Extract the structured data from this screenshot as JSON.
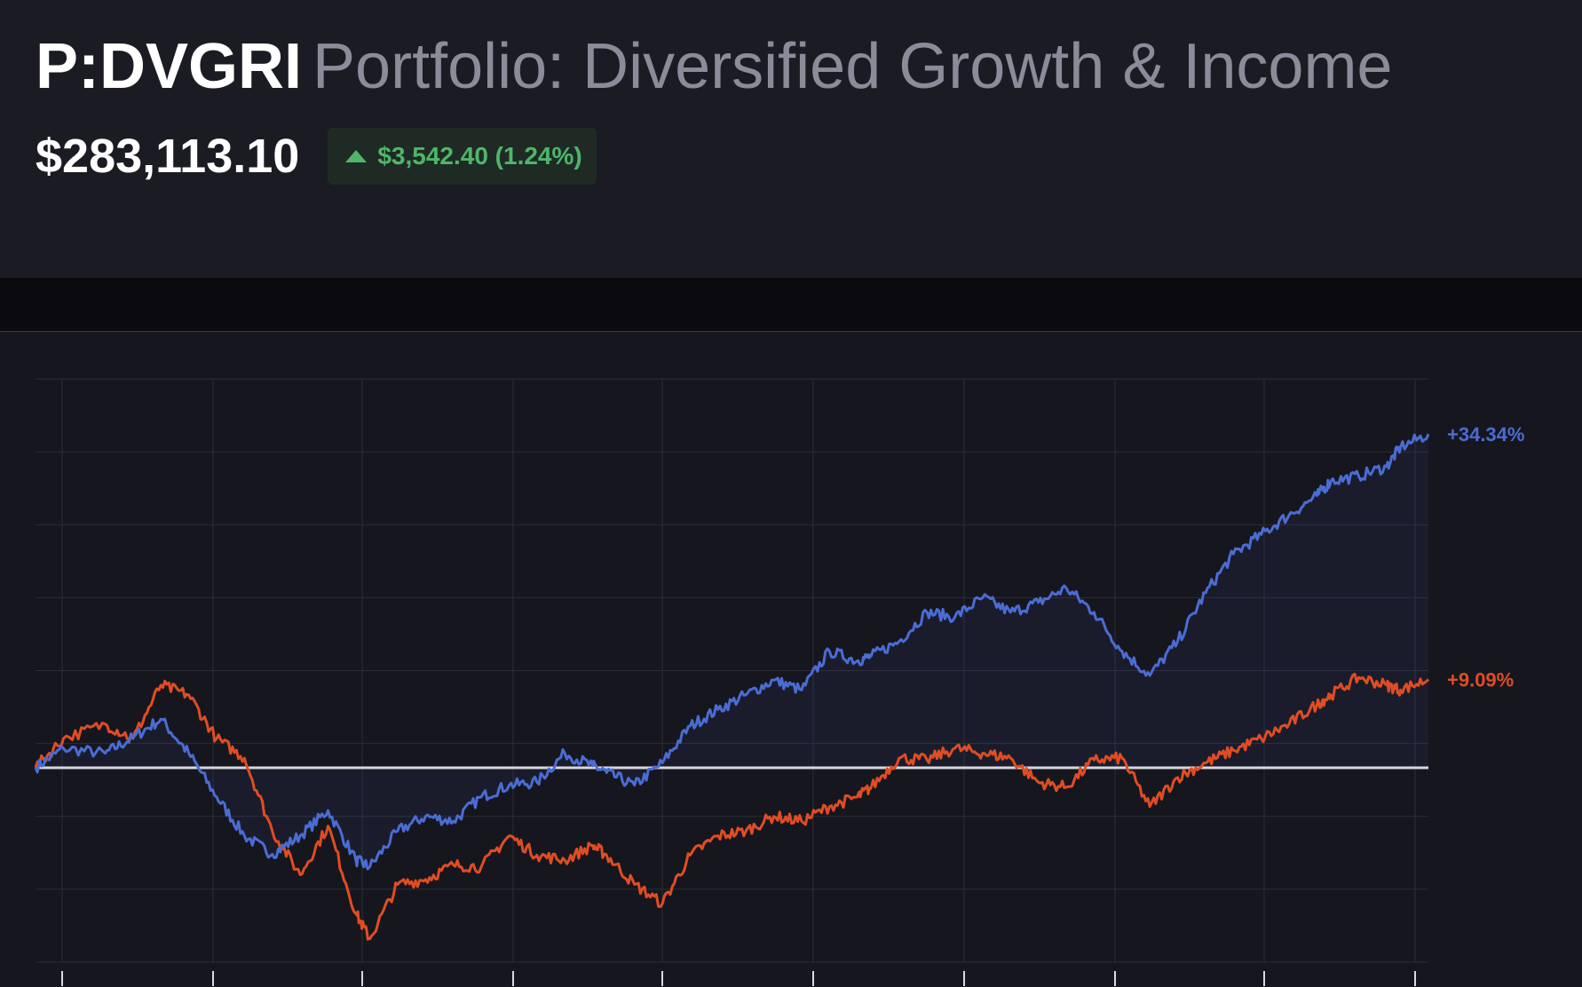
{
  "header": {
    "ticker": "P:DVGRI",
    "name": "Portfolio: Diversified Growth & Income",
    "value": "$283,113.10",
    "change": "$3,542.40 (1.24%)",
    "change_direction": "up",
    "change_color": "#4eb668"
  },
  "chart_data": {
    "type": "line",
    "x": [
      0,
      2,
      5,
      7,
      9,
      11,
      13,
      15,
      17,
      19,
      21,
      23,
      24,
      26,
      28,
      30,
      32,
      34,
      36,
      38,
      40,
      41,
      43,
      45,
      47,
      49,
      51,
      53,
      55,
      57,
      59,
      60,
      62,
      64,
      66,
      68,
      70,
      72,
      74,
      76,
      78,
      80,
      82,
      84,
      86,
      88,
      90,
      92,
      93,
      95,
      97,
      98,
      100
    ],
    "ylim": [
      -20,
      40
    ],
    "baseline": 0,
    "grid": true,
    "series": [
      {
        "color": "#4a6cd4",
        "end_label": "+34.34%",
        "values": [
          0,
          2.0,
          1.5,
          3.1,
          5.0,
          1.5,
          -3.0,
          -7.0,
          -8.9,
          -7.0,
          -4.4,
          -9.5,
          -10.2,
          -6.5,
          -5.0,
          -5.5,
          -3.0,
          -1.8,
          -1.5,
          1.5,
          0.2,
          -0.5,
          -1.8,
          0.5,
          4.3,
          6.0,
          7.5,
          9.0,
          8.0,
          12.0,
          11.0,
          11.5,
          13.0,
          16.0,
          15.5,
          17.5,
          16.0,
          17.0,
          18.5,
          16.0,
          12.0,
          9.5,
          13.0,
          18.0,
          22.0,
          24.0,
          26.0,
          28.0,
          29.5,
          30.0,
          31.0,
          33.0,
          34.34
        ]
      },
      {
        "color": "#e04d23",
        "end_label": "+9.09%",
        "values": [
          0,
          3.0,
          4.5,
          3.0,
          8.5,
          7.5,
          3.0,
          1.0,
          -6.5,
          -11.0,
          -6.0,
          -15.0,
          -17.6,
          -12.0,
          -11.5,
          -10.0,
          -10.2,
          -7.0,
          -9.0,
          -9.5,
          -8.0,
          -9.0,
          -12.0,
          -14.0,
          -9.0,
          -7.0,
          -6.5,
          -5.0,
          -5.5,
          -4.0,
          -3.0,
          -2.0,
          1.0,
          0.8,
          2.0,
          1.5,
          1.0,
          -1.5,
          -2.0,
          0.8,
          1.0,
          -4.0,
          -1.0,
          0.5,
          1.8,
          3.0,
          4.5,
          6.5,
          7.5,
          9.3,
          8.5,
          8.0,
          9.09
        ]
      }
    ]
  }
}
